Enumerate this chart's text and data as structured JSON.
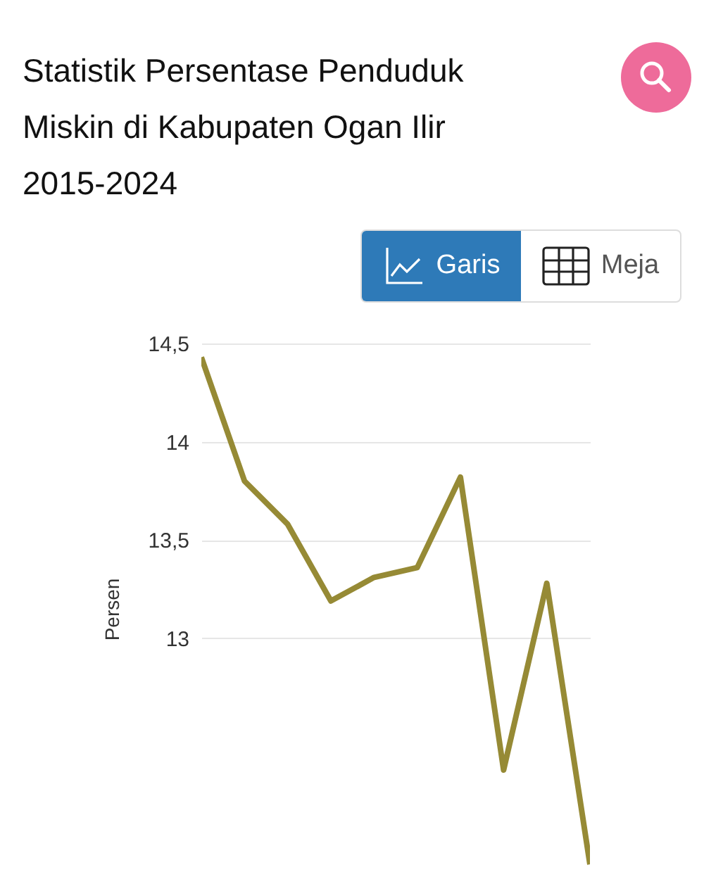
{
  "chart_data": {
    "type": "line",
    "title": "Statistik Persentase Penduduk Miskin di Kabupaten Ogan Ilir 2015-2024",
    "ylabel": "Persen",
    "categories": [
      null,
      null,
      null,
      null,
      null,
      null,
      null,
      null,
      null,
      null
    ],
    "series": [
      {
        "color": "#968a35",
        "values": [
          14.43,
          13.8,
          13.58,
          13.19,
          13.31,
          13.36,
          13.82,
          12.33,
          13.28,
          11.85
        ]
      }
    ],
    "ylim": [
      11.8,
      14.5
    ],
    "yticks": [
      {
        "value": 13,
        "label": "13"
      },
      {
        "value": 13.5,
        "label": "13,5"
      },
      {
        "value": 14,
        "label": "14"
      },
      {
        "value": 14.5,
        "label": "14,5"
      }
    ],
    "grid": "y",
    "marker": "none",
    "line_style": "solid",
    "annotations": [
      "Garis",
      "Meja"
    ]
  }
}
